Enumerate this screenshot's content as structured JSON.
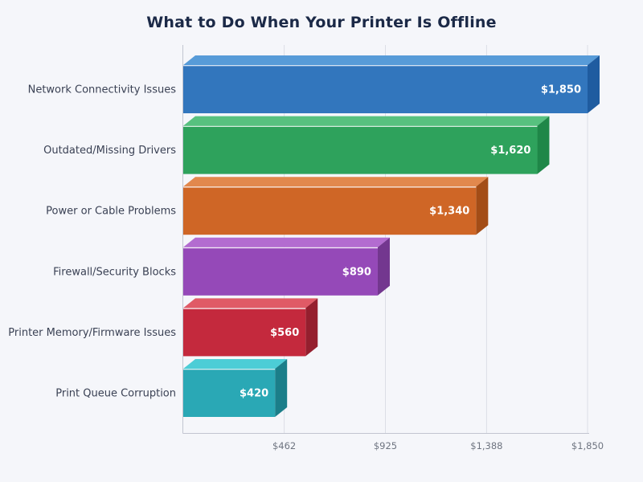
{
  "page": {
    "background": "#f5f6fa"
  },
  "chart_data": {
    "type": "bar",
    "orientation": "horizontal",
    "style": "3d",
    "title": "What to Do When Your Printer Is Offline",
    "categories": [
      "Network Connectivity Issues",
      "Outdated/Missing Drivers",
      "Power or Cable Problems",
      "Firewall/Security Blocks",
      "Printer Memory/Firmware Issues",
      "Print Queue Corruption"
    ],
    "values": [
      1850,
      1620,
      1340,
      890,
      560,
      420
    ],
    "value_labels": [
      "$1,850",
      "$1,620",
      "$1,340",
      "$890",
      "$560",
      "$420"
    ],
    "bar_colors": [
      {
        "face": "#3276bd",
        "top": "#579bd8",
        "side": "#1f5ca0"
      },
      {
        "face": "#2ea25c",
        "top": "#57c17f",
        "side": "#1f8748"
      },
      {
        "face": "#cf6626",
        "top": "#e2884d",
        "side": "#a34d17"
      },
      {
        "face": "#9549b8",
        "top": "#b36cd0",
        "side": "#73378f"
      },
      {
        "face": "#c4293d",
        "top": "#e05a66",
        "side": "#951f2e"
      },
      {
        "face": "#2aa8b5",
        "top": "#4ccdd6",
        "side": "#1b7e89"
      }
    ],
    "xlim": [
      0,
      1850
    ],
    "x_ticks": [
      462,
      925,
      1388,
      1850
    ],
    "x_tick_labels": [
      "$462",
      "$925",
      "$1,388",
      "$1,850"
    ],
    "grid": true,
    "legend": false,
    "colors": {
      "title": "#1b2947",
      "category_label": "#3a4154",
      "value_label": "#ffffff",
      "tick_label": "#6e7480",
      "gridline": "#dcdee6",
      "axis": "#c2c5d0",
      "bar_top_highlight": "#ffffff"
    }
  }
}
